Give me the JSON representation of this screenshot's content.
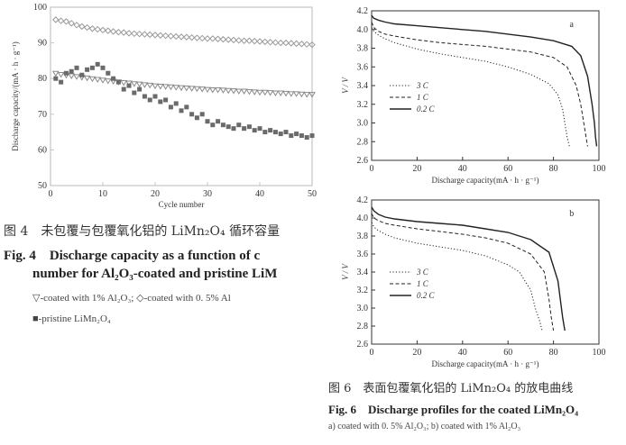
{
  "fig4": {
    "caption_zh": "图 4　未包覆与包覆氧化铝的 LiMn₂O₄ 循环容量",
    "caption_en_line1": "Fig. 4　Discharge capacity as a function of c",
    "caption_en_line2": "number for Al₂O₃-coated and pristine LiM",
    "legend_line1": "▽-coated with 1%  Al₂O₃;  ◇-coated with 0. 5%  Al",
    "legend_line2": "■-pristine LiMn₂O₄"
  },
  "fig6": {
    "caption_zh": "图 6　表面包覆氧化铝的 LiMn₂O₄ 的放电曲线",
    "caption_en": "Fig. 6　Discharge profiles for the coated LiMn₂O₄",
    "subcaption": "a) coated with 0. 5%  Al₂O₃;  b) coated with 1%  Al₂O₃"
  },
  "chart_data": [
    {
      "id": "fig4",
      "type": "scatter",
      "xlabel": "Cycle number",
      "ylabel": "Discharge capacity/(mA · h · g⁻¹)",
      "xlim": [
        0,
        50
      ],
      "ylim": [
        50,
        100
      ],
      "xticks": [
        0,
        10,
        20,
        30,
        40,
        50
      ],
      "yticks": [
        50,
        60,
        70,
        80,
        90,
        100
      ],
      "grid": false,
      "series": [
        {
          "marker": "diamond",
          "x": [
            1,
            2,
            3,
            4,
            5,
            6,
            7,
            8,
            9,
            10,
            11,
            12,
            13,
            14,
            15,
            16,
            17,
            18,
            19,
            20,
            21,
            22,
            23,
            24,
            25,
            26,
            27,
            28,
            29,
            30,
            31,
            32,
            33,
            34,
            35,
            36,
            37,
            38,
            39,
            40,
            41,
            42,
            43,
            44,
            45,
            46,
            47,
            48,
            49,
            50
          ],
          "y": [
            96.5,
            96.2,
            96,
            95.5,
            95,
            94.6,
            94.3,
            94,
            93.8,
            93.6,
            93.4,
            93.2,
            93,
            92.9,
            92.7,
            92.6,
            92.5,
            92.4,
            92.3,
            92.2,
            92.1,
            92,
            91.9,
            91.8,
            91.7,
            91.6,
            91.5,
            91.4,
            91.3,
            91.2,
            91.2,
            91.1,
            91,
            90.9,
            90.8,
            90.7,
            90.6,
            90.6,
            90.5,
            90.4,
            90.3,
            90.2,
            90.1,
            90,
            90,
            89.9,
            89.8,
            89.7,
            89.6,
            89.5
          ]
        },
        {
          "marker": "triangle-down",
          "x": [
            1,
            2,
            3,
            4,
            5,
            6,
            7,
            8,
            9,
            10,
            11,
            12,
            13,
            14,
            15,
            16,
            17,
            18,
            19,
            20,
            21,
            22,
            23,
            24,
            25,
            26,
            27,
            28,
            29,
            30,
            31,
            32,
            33,
            34,
            35,
            36,
            37,
            38,
            39,
            40,
            41,
            42,
            43,
            44,
            45,
            46,
            47,
            48,
            49,
            50
          ],
          "y": [
            81.5,
            81.2,
            81,
            80.8,
            80.6,
            80.4,
            80.2,
            80,
            79.8,
            79.6,
            79.4,
            79.3,
            79.1,
            78.9,
            78.8,
            78.6,
            78.5,
            78.3,
            78.2,
            78,
            77.9,
            77.8,
            77.7,
            77.6,
            77.5,
            77.4,
            77.3,
            77.2,
            77.1,
            77,
            76.9,
            76.9,
            76.8,
            76.7,
            76.6,
            76.5,
            76.5,
            76.4,
            76.3,
            76.2,
            76.2,
            76.1,
            76,
            76,
            75.9,
            75.8,
            75.8,
            75.7,
            75.6,
            75.6
          ]
        },
        {
          "marker": "square-filled",
          "x": [
            1,
            2,
            3,
            4,
            5,
            6,
            7,
            8,
            9,
            10,
            11,
            12,
            13,
            14,
            15,
            16,
            17,
            18,
            19,
            20,
            21,
            22,
            23,
            24,
            25,
            26,
            27,
            28,
            29,
            30,
            31,
            32,
            33,
            34,
            35,
            36,
            37,
            38,
            39,
            40,
            41,
            42,
            43,
            44,
            45,
            46,
            47,
            48,
            49,
            50
          ],
          "y": [
            80,
            79,
            81.5,
            82,
            83,
            81,
            82.5,
            83,
            84,
            83,
            81.5,
            80,
            79,
            77,
            78,
            76,
            77,
            75,
            74,
            75,
            73.5,
            74,
            72,
            73,
            71,
            72,
            70,
            69,
            70,
            68,
            67,
            68,
            67,
            66.5,
            66,
            67,
            66,
            66.5,
            65.5,
            66,
            65,
            65.5,
            65,
            64.5,
            65,
            64,
            64.5,
            64,
            63.5,
            64
          ]
        }
      ]
    },
    {
      "id": "fig6a",
      "type": "line",
      "panel_label": "a",
      "xlabel": "Discharge capacity(mA · h · g⁻¹)",
      "ylabel": "V / V",
      "xlim": [
        0,
        100
      ],
      "ylim": [
        2.6,
        4.2
      ],
      "xticks": [
        0,
        20,
        40,
        60,
        80,
        100
      ],
      "yticks": [
        2.6,
        2.8,
        3.0,
        3.2,
        3.4,
        3.6,
        3.8,
        4.0,
        4.2
      ],
      "legend_position": "bottom-left",
      "series": [
        {
          "name": "3 C",
          "style": "dotted",
          "x": [
            0,
            1,
            3,
            6,
            10,
            20,
            30,
            40,
            50,
            60,
            70,
            78,
            82,
            84,
            85,
            86,
            87
          ],
          "y": [
            4.02,
            3.98,
            3.94,
            3.9,
            3.86,
            3.79,
            3.74,
            3.7,
            3.66,
            3.6,
            3.52,
            3.42,
            3.3,
            3.15,
            3.0,
            2.85,
            2.75
          ]
        },
        {
          "name": "1 C",
          "style": "dashed",
          "x": [
            0,
            1,
            3,
            6,
            10,
            20,
            30,
            40,
            50,
            60,
            70,
            80,
            86,
            90,
            92,
            94,
            95
          ],
          "y": [
            4.08,
            4.02,
            3.98,
            3.95,
            3.93,
            3.89,
            3.86,
            3.84,
            3.82,
            3.79,
            3.76,
            3.7,
            3.6,
            3.4,
            3.2,
            2.9,
            2.75
          ]
        },
        {
          "name": "0.2 C",
          "style": "solid",
          "x": [
            0,
            1,
            3,
            6,
            10,
            20,
            30,
            40,
            50,
            60,
            70,
            80,
            88,
            92,
            95,
            97,
            98,
            98.5,
            99
          ],
          "y": [
            4.15,
            4.12,
            4.1,
            4.08,
            4.06,
            4.04,
            4.02,
            4.0,
            3.98,
            3.95,
            3.92,
            3.88,
            3.82,
            3.72,
            3.5,
            3.2,
            3.0,
            2.85,
            2.75
          ]
        }
      ]
    },
    {
      "id": "fig6b",
      "type": "line",
      "panel_label": "b",
      "xlabel": "Discharge capacity(mA · h · g⁻¹)",
      "ylabel": "V / V",
      "xlim": [
        0,
        100
      ],
      "ylim": [
        2.6,
        4.2
      ],
      "xticks": [
        0,
        20,
        40,
        60,
        80,
        100
      ],
      "yticks": [
        2.6,
        2.8,
        3.0,
        3.2,
        3.4,
        3.6,
        3.8,
        4.0,
        4.2
      ],
      "legend_position": "bottom-left",
      "series": [
        {
          "name": "3 C",
          "style": "dotted",
          "x": [
            0,
            1,
            3,
            6,
            10,
            20,
            30,
            40,
            50,
            60,
            65,
            70,
            72,
            74,
            75
          ],
          "y": [
            3.95,
            3.9,
            3.86,
            3.82,
            3.78,
            3.72,
            3.68,
            3.64,
            3.58,
            3.48,
            3.4,
            3.2,
            3.0,
            2.85,
            2.75
          ]
        },
        {
          "name": "1 C",
          "style": "dashed",
          "x": [
            0,
            1,
            3,
            6,
            10,
            20,
            30,
            40,
            50,
            60,
            70,
            76,
            78,
            79,
            80
          ],
          "y": [
            4.05,
            4.0,
            3.97,
            3.94,
            3.92,
            3.88,
            3.85,
            3.82,
            3.78,
            3.72,
            3.6,
            3.4,
            3.1,
            2.9,
            2.75
          ]
        },
        {
          "name": "0.2 C",
          "style": "solid",
          "x": [
            0,
            1,
            3,
            6,
            10,
            20,
            30,
            40,
            50,
            60,
            70,
            78,
            82,
            84,
            85
          ],
          "y": [
            4.12,
            4.08,
            4.04,
            4.01,
            3.99,
            3.96,
            3.94,
            3.92,
            3.88,
            3.84,
            3.76,
            3.62,
            3.3,
            2.9,
            2.75
          ]
        }
      ]
    }
  ]
}
